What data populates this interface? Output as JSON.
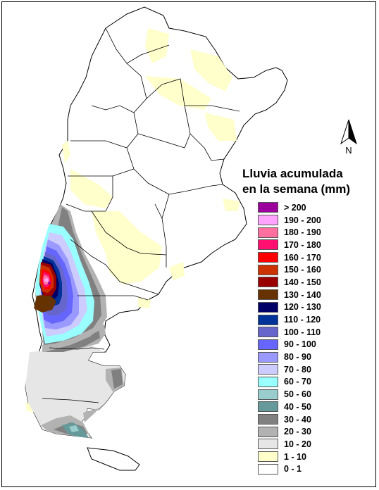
{
  "legend": {
    "title_line1": "Lluvia acumulada",
    "title_line2": "en la semana (mm)",
    "items": [
      {
        "label": "> 200",
        "color": "#9c009c"
      },
      {
        "label": "190 - 200",
        "color": "#ffa3ff"
      },
      {
        "label": "180 - 190",
        "color": "#ff6f9f"
      },
      {
        "label": "170 - 180",
        "color": "#ff0f6f"
      },
      {
        "label": "160 - 170",
        "color": "#ff0000"
      },
      {
        "label": "150 - 160",
        "color": "#cc3300"
      },
      {
        "label": "140 - 150",
        "color": "#990000"
      },
      {
        "label": "130 - 140",
        "color": "#663300"
      },
      {
        "label": "120 - 130",
        "color": "#000066"
      },
      {
        "label": "110 - 120",
        "color": "#003399"
      },
      {
        "label": "100 - 110",
        "color": "#6666cc"
      },
      {
        "label": "90 - 100",
        "color": "#6666ff"
      },
      {
        "label": "80 - 90",
        "color": "#9999ff"
      },
      {
        "label": "70 - 80",
        "color": "#ccccff"
      },
      {
        "label": "60 - 70",
        "color": "#99ffff"
      },
      {
        "label": "50 - 60",
        "color": "#99cccc"
      },
      {
        "label": "40 - 50",
        "color": "#669999"
      },
      {
        "label": "30 - 40",
        "color": "#808080"
      },
      {
        "label": "20 - 30",
        "color": "#b2b2b2"
      },
      {
        "label": "10 - 20",
        "color": "#e6e6e6"
      },
      {
        "label": "1 - 10",
        "color": "#ffffcc"
      },
      {
        "label": "0 - 1",
        "color": "#ffffff"
      }
    ]
  },
  "north_arrow": {
    "label": "N"
  }
}
